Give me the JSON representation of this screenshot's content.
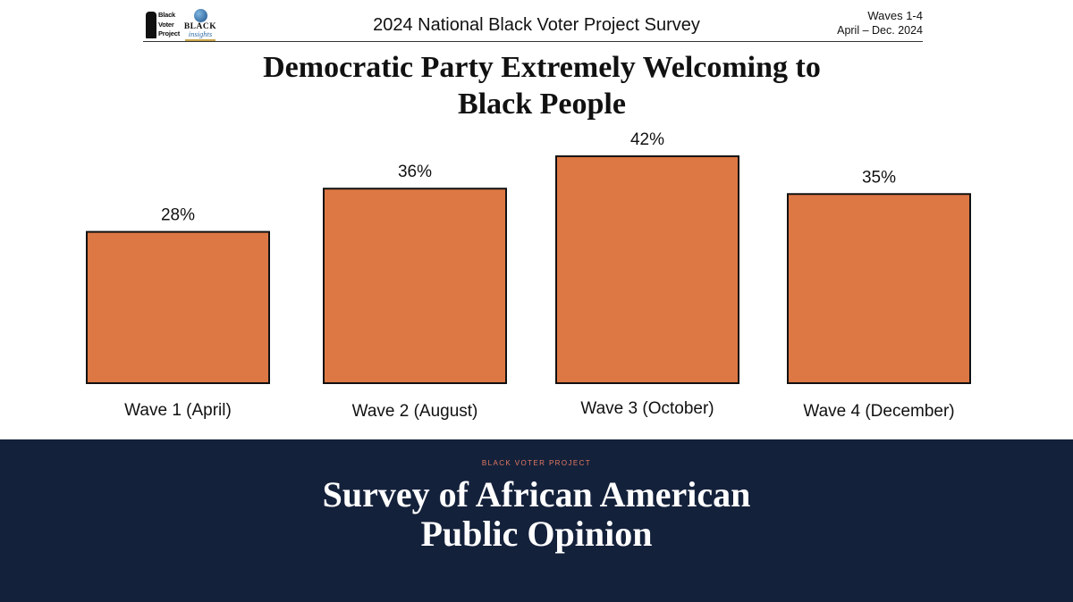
{
  "header": {
    "logo_bvp_lines": [
      "Black",
      "Voter",
      "Project"
    ],
    "logo_bi_word1": "BLACK",
    "logo_bi_word2": "insights",
    "survey_title": "2024 National Black Voter Project Survey",
    "waves": "Waves 1-4",
    "dates": "April – Dec. 2024"
  },
  "chart_data": {
    "type": "bar",
    "title": "Democratic Party Extremely Welcoming to Black People",
    "title_lines": [
      "Democratic Party Extremely Welcoming to",
      "Black People"
    ],
    "categories": [
      "Wave 1 (April)",
      "Wave 2 (August)",
      "Wave 3 (October)",
      "Wave 4 (December)"
    ],
    "values": [
      28,
      36,
      42,
      35
    ],
    "value_labels": [
      "28%",
      "36%",
      "42%",
      "35%"
    ],
    "unit": "%",
    "xlabel": "",
    "ylabel": "",
    "ylim": [
      0,
      45
    ],
    "grid": false,
    "legend": "none",
    "colors": {
      "bar_fill": "#dd7744",
      "bar_stroke": "#111111"
    }
  },
  "footer": {
    "kicker": "BLACK VOTER PROJECT",
    "title": "Survey of African American Public Opinion",
    "colors": {
      "background": "#14213b",
      "kicker": "#e57a62",
      "title": "#ffffff"
    }
  }
}
